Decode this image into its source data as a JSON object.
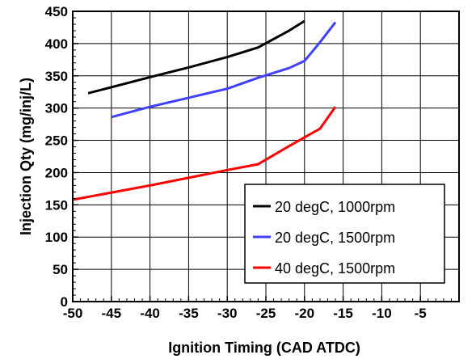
{
  "chart_data": {
    "type": "line",
    "title": "",
    "xlabel": "Ignition Timing (CAD ATDC)",
    "ylabel": "Injection Qty (mg/inj/L)",
    "xlim": [
      -50,
      0
    ],
    "ylim": [
      0,
      450
    ],
    "xticks": [
      -50,
      -45,
      -40,
      -35,
      -30,
      -25,
      -20,
      -15,
      -10,
      -5
    ],
    "yticks": [
      0,
      50,
      100,
      150,
      200,
      250,
      300,
      350,
      400,
      450
    ],
    "grid": true,
    "legend_position": "bottom-right",
    "series": [
      {
        "name": "20 degC, 1000rpm",
        "color": "#000000",
        "x": [
          -48,
          -40,
          -35,
          -30,
          -26,
          -22,
          -20
        ],
        "y": [
          323,
          348,
          363,
          379,
          394,
          420,
          435
        ]
      },
      {
        "name": "20 degC, 1500rpm",
        "color": "#4040ff",
        "x": [
          -45,
          -40,
          -35,
          -30,
          -26,
          -22,
          -20,
          -18,
          -16
        ],
        "y": [
          286,
          302,
          316,
          330,
          347,
          362,
          373,
          402,
          433
        ]
      },
      {
        "name": "40 degC, 1500rpm",
        "color": "#ff0000",
        "x": [
          -50,
          -40,
          -30,
          -26,
          -22,
          -18,
          -16
        ],
        "y": [
          158,
          180,
          204,
          213,
          241,
          268,
          302
        ]
      }
    ]
  }
}
